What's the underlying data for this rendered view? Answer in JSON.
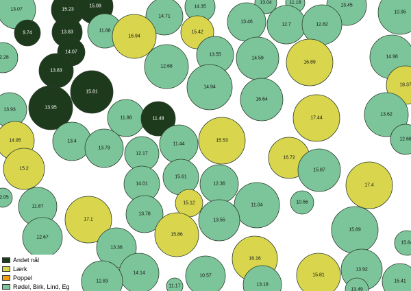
{
  "colors": {
    "Andet nål": "#1e3a1c",
    "Lærk": "#d9d64e",
    "Poppel": "#f39c12",
    "Rødel, Birk, Lind, Eg": "#7cc59a"
  },
  "legend": [
    {
      "label": "Andet nål",
      "color": "#1e3a1c"
    },
    {
      "label": "Lærk",
      "color": "#d9d64e"
    },
    {
      "label": "Poppel",
      "color": "#f39c12"
    },
    {
      "label": "Rødel, Birk, Lind, Eg",
      "color": "#7cc59a"
    }
  ],
  "trees": [
    {
      "label": "13.07",
      "type": "Rødel, Birk, Lind, Eg"
    },
    {
      "label": "15.23",
      "type": "Andet nål"
    },
    {
      "label": "15.08",
      "type": "Andet nål"
    },
    {
      "label": "9.74",
      "type": "Andet nål"
    },
    {
      "label": "13.83",
      "type": "Andet nål"
    },
    {
      "label": "11.88",
      "type": "Rødel, Birk, Lind, Eg"
    },
    {
      "label": "14.07",
      "type": "Andet nål"
    },
    {
      "label": "12.28",
      "type": "Rødel, Birk, Lind, Eg"
    },
    {
      "label": "13.83",
      "type": "Andet nål"
    },
    {
      "label": "15.81",
      "type": "Andet nål"
    },
    {
      "label": "13.95",
      "type": "Andet nål"
    },
    {
      "label": "13.93",
      "type": "Rødel, Birk, Lind, Eg"
    },
    {
      "label": "14.71",
      "type": "Rødel, Birk, Lind, Eg"
    },
    {
      "label": "14.35",
      "type": "Rødel, Birk, Lind, Eg"
    },
    {
      "label": "16.94",
      "type": "Lærk"
    },
    {
      "label": "15.42",
      "type": "Lærk"
    },
    {
      "label": "12.68",
      "type": "Rødel, Birk, Lind, Eg"
    },
    {
      "label": "13.55",
      "type": "Rødel, Birk, Lind, Eg"
    },
    {
      "label": "14.94",
      "type": "Rødel, Birk, Lind, Eg"
    },
    {
      "label": "13.04",
      "type": "Rødel, Birk, Lind, Eg"
    },
    {
      "label": "11.18",
      "type": "Rødel, Birk, Lind, Eg"
    },
    {
      "label": "13.45",
      "type": "Rødel, Birk, Lind, Eg"
    },
    {
      "label": "13.46",
      "type": "Rødel, Birk, Lind, Eg"
    },
    {
      "label": "12.7",
      "type": "Rødel, Birk, Lind, Eg"
    },
    {
      "label": "12.82",
      "type": "Rødel, Birk, Lind, Eg"
    },
    {
      "label": "10.95",
      "type": "Rødel, Birk, Lind, Eg"
    },
    {
      "label": "14.59",
      "type": "Rødel, Birk, Lind, Eg"
    },
    {
      "label": "16.89",
      "type": "Lærk"
    },
    {
      "label": "14.98",
      "type": "Rødel, Birk, Lind, Eg"
    },
    {
      "label": "18.37",
      "type": "Lærk"
    },
    {
      "label": "16.64",
      "type": "Rødel, Birk, Lind, Eg"
    },
    {
      "label": "17.44",
      "type": "Lærk"
    },
    {
      "label": "13.62",
      "type": "Rødel, Birk, Lind, Eg"
    },
    {
      "label": "12.68",
      "type": "Rødel, Birk, Lind, Eg"
    },
    {
      "label": "11.88",
      "type": "Rødel, Birk, Lind, Eg"
    },
    {
      "label": "11.48",
      "type": "Andet nål"
    },
    {
      "label": "14.95",
      "type": "Lærk"
    },
    {
      "label": "13.4",
      "type": "Rødel, Birk, Lind, Eg"
    },
    {
      "label": "13.79",
      "type": "Rødel, Birk, Lind, Eg"
    },
    {
      "label": "12.17",
      "type": "Rødel, Birk, Lind, Eg"
    },
    {
      "label": "11.44",
      "type": "Rødel, Birk, Lind, Eg"
    },
    {
      "label": "15.53",
      "type": "Lærk"
    },
    {
      "label": "16.72",
      "type": "Lærk"
    },
    {
      "label": "15.87",
      "type": "Rødel, Birk, Lind, Eg"
    },
    {
      "label": "15.2",
      "type": "Lærk"
    },
    {
      "label": "14.01",
      "type": "Rødel, Birk, Lind, Eg"
    },
    {
      "label": "15.61",
      "type": "Rødel, Birk, Lind, Eg"
    },
    {
      "label": "12.36",
      "type": "Rødel, Birk, Lind, Eg"
    },
    {
      "label": "17.4",
      "type": "Lærk"
    },
    {
      "label": "12.05",
      "type": "Rødel, Birk, Lind, Eg"
    },
    {
      "label": "11.87",
      "type": "Rødel, Birk, Lind, Eg"
    },
    {
      "label": "15.12",
      "type": "Lærk"
    },
    {
      "label": "11.04",
      "type": "Rødel, Birk, Lind, Eg"
    },
    {
      "label": "10.56",
      "type": "Rødel, Birk, Lind, Eg"
    },
    {
      "label": "17.1",
      "type": "Lærk"
    },
    {
      "label": "13.78",
      "type": "Rødel, Birk, Lind, Eg"
    },
    {
      "label": "13.55",
      "type": "Rødel, Birk, Lind, Eg"
    },
    {
      "label": "15.89",
      "type": "Rødel, Birk, Lind, Eg"
    },
    {
      "label": "12.67",
      "type": "Rødel, Birk, Lind, Eg"
    },
    {
      "label": "15.86",
      "type": "Lærk"
    },
    {
      "label": "13.36",
      "type": "Rødel, Birk, Lind, Eg"
    },
    {
      "label": "15.84",
      "type": "Rødel, Birk, Lind, Eg"
    },
    {
      "label": "16.16",
      "type": "Lærk"
    },
    {
      "label": "14.14",
      "type": "Rødel, Birk, Lind, Eg"
    },
    {
      "label": "10.57",
      "type": "Rødel, Birk, Lind, Eg"
    },
    {
      "label": "15.81",
      "type": "Lærk"
    },
    {
      "label": "13.92",
      "type": "Rødel, Birk, Lind, Eg"
    },
    {
      "label": "12.83",
      "type": "Rødel, Birk, Lind, Eg"
    },
    {
      "label": "11.17",
      "type": "Rødel, Birk, Lind, Eg"
    },
    {
      "label": "13.18",
      "type": "Rødel, Birk, Lind, Eg"
    },
    {
      "label": "13.49",
      "type": "Rødel, Birk, Lind, Eg"
    },
    {
      "label": "15.41",
      "type": "Rødel, Birk, Lind, Eg"
    }
  ]
}
